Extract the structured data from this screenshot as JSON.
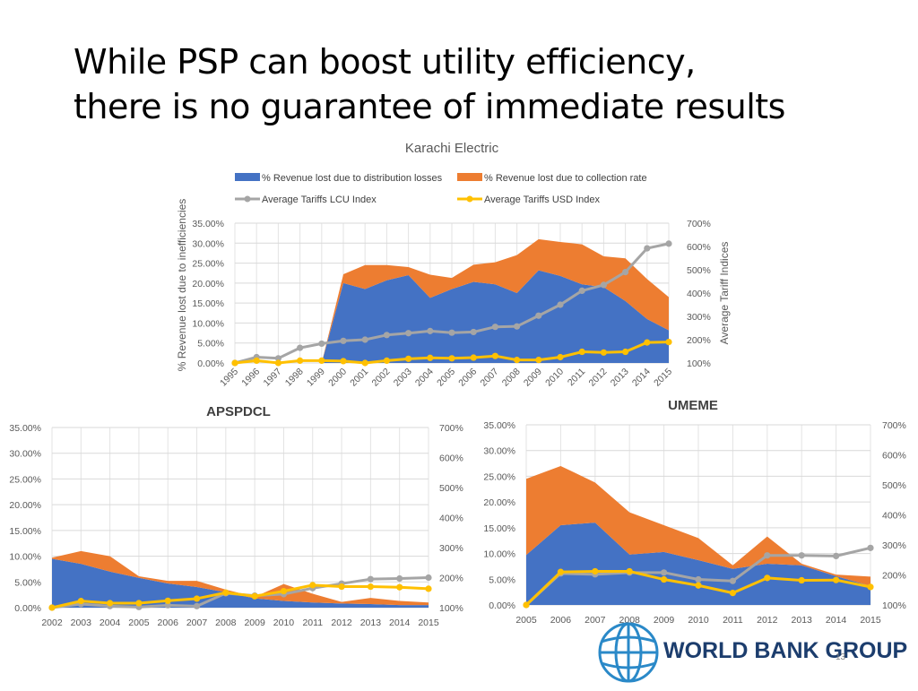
{
  "slide": {
    "title_line1": "While PSP can boost utility efficiency,",
    "title_line2": "there is no guarantee of immediate results",
    "logo_text": "WORLD BANK GROUP",
    "page_number": "13"
  },
  "colors": {
    "distribution": "#4472c4",
    "collection": "#ed7d31",
    "lcu": "#a5a5a5",
    "usd": "#ffc000"
  },
  "chart_data": [
    {
      "type": "area",
      "title": "Karachi Electric",
      "ylabel": "% Revenue lost due to inefficiencies",
      "y2label": "Average Tariff Indices",
      "legend": [
        "% Revenue lost due to distribution losses",
        "% Revenue lost due to collection rate",
        "Average Tariffs LCU Index",
        "Average Tariffs USD Index"
      ],
      "legend_position": "top",
      "ylim": [
        0,
        0.35
      ],
      "y_ticks": [
        "0.00%",
        "5.00%",
        "10.00%",
        "15.00%",
        "20.00%",
        "25.00%",
        "30.00%",
        "35.00%"
      ],
      "y2lim": [
        100,
        700
      ],
      "y2_ticks": [
        "100%",
        "200%",
        "300%",
        "400%",
        "500%",
        "600%",
        "700%"
      ],
      "x_rotated": true,
      "categories": [
        "1995",
        "1996",
        "1997",
        "1998",
        "1999",
        "2000",
        "2001",
        "2002",
        "2003",
        "2004",
        "2005",
        "2006",
        "2007",
        "2008",
        "2009",
        "2010",
        "2011",
        "2012",
        "2013",
        "2014",
        "2015"
      ],
      "series": [
        {
          "name": "% Revenue lost due to distribution losses",
          "kind": "area",
          "axis": "left",
          "values": [
            0,
            0,
            0,
            0,
            0,
            0.2,
            0.185,
            0.207,
            0.22,
            0.163,
            0.185,
            0.203,
            0.197,
            0.175,
            0.232,
            0.218,
            0.197,
            0.19,
            0.155,
            0.11,
            0.082
          ]
        },
        {
          "name": "% Revenue lost due to collection rate",
          "kind": "area",
          "axis": "left",
          "values": [
            0,
            0,
            0,
            0,
            0,
            0.022,
            0.06,
            0.038,
            0.02,
            0.058,
            0.028,
            0.043,
            0.055,
            0.095,
            0.078,
            0.085,
            0.1,
            0.077,
            0.107,
            0.1,
            0.083
          ]
        },
        {
          "name": "Average Tariffs LCU Index",
          "kind": "line",
          "axis": "right",
          "values": [
            100,
            125,
            120,
            165,
            183,
            195,
            200,
            220,
            228,
            237,
            230,
            233,
            255,
            257,
            303,
            350,
            410,
            435,
            490,
            592,
            612
          ]
        },
        {
          "name": "Average Tariffs USD Index",
          "kind": "line",
          "axis": "right",
          "values": [
            100,
            110,
            100,
            110,
            110,
            108,
            100,
            110,
            118,
            122,
            120,
            123,
            130,
            113,
            113,
            125,
            148,
            145,
            148,
            188,
            190
          ]
        }
      ]
    },
    {
      "type": "area",
      "title": "APSPDCL",
      "ylim": [
        0,
        0.35
      ],
      "y_ticks": [
        "0.00%",
        "5.00%",
        "10.00%",
        "15.00%",
        "20.00%",
        "25.00%",
        "30.00%",
        "35.00%"
      ],
      "y2lim": [
        100,
        700
      ],
      "y2_ticks": [
        "100%",
        "200%",
        "300%",
        "400%",
        "500%",
        "600%",
        "700%"
      ],
      "x_rotated": false,
      "categories": [
        "2002",
        "2003",
        "2004",
        "2005",
        "2006",
        "2007",
        "2008",
        "2009",
        "2010",
        "2011",
        "2012",
        "2013",
        "2014",
        "2015"
      ],
      "series": [
        {
          "name": "% Revenue lost due to distribution losses",
          "kind": "area",
          "axis": "left",
          "values": [
            0.095,
            0.085,
            0.07,
            0.058,
            0.047,
            0.04,
            0.03,
            0.018,
            0.013,
            0.01,
            0.008,
            0.007,
            0.005,
            0.005
          ]
        },
        {
          "name": "% Revenue lost due to collection rate",
          "kind": "area",
          "axis": "left",
          "values": [
            0.002,
            0.025,
            0.03,
            0.003,
            0.005,
            0.012,
            0.005,
            0.003,
            0.033,
            0.017,
            0.003,
            0.012,
            0.008,
            0.005
          ]
        },
        {
          "name": "Average Tariffs LCU Index",
          "kind": "line",
          "axis": "right",
          "values": [
            100,
            112,
            105,
            102,
            108,
            105,
            148,
            140,
            145,
            165,
            180,
            195,
            197,
            200
          ]
        },
        {
          "name": "Average Tariffs USD Index",
          "kind": "line",
          "axis": "right",
          "values": [
            100,
            122,
            115,
            115,
            123,
            130,
            150,
            138,
            155,
            175,
            170,
            170,
            168,
            163
          ]
        }
      ]
    },
    {
      "type": "area",
      "title": "UMEME",
      "ylim": [
        0,
        0.35
      ],
      "y_ticks": [
        "0.00%",
        "5.00%",
        "10.00%",
        "15.00%",
        "20.00%",
        "25.00%",
        "30.00%",
        "35.00%"
      ],
      "y2lim": [
        100,
        700
      ],
      "y2_ticks": [
        "100%",
        "200%",
        "300%",
        "400%",
        "500%",
        "600%",
        "700%"
      ],
      "x_rotated": false,
      "categories": [
        "2005",
        "2006",
        "2007",
        "2008",
        "2009",
        "2010",
        "2011",
        "2012",
        "2013",
        "2014",
        "2015"
      ],
      "series": [
        {
          "name": "% Revenue lost due to distribution losses",
          "kind": "area",
          "axis": "left",
          "values": [
            0.097,
            0.155,
            0.16,
            0.098,
            0.103,
            0.087,
            0.07,
            0.08,
            0.077,
            0.056,
            0.037
          ]
        },
        {
          "name": "% Revenue lost due to collection rate",
          "kind": "area",
          "axis": "left",
          "values": [
            0.148,
            0.115,
            0.078,
            0.082,
            0.052,
            0.043,
            0.007,
            0.053,
            0.003,
            0.003,
            0.018
          ]
        },
        {
          "name": "Average Tariffs LCU Index",
          "kind": "line",
          "axis": "right",
          "values": [
            100,
            205,
            202,
            208,
            208,
            185,
            180,
            265,
            265,
            263,
            290
          ]
        },
        {
          "name": "Average Tariffs USD Index",
          "kind": "line",
          "axis": "right",
          "values": [
            100,
            210,
            212,
            212,
            185,
            165,
            140,
            190,
            182,
            183,
            160
          ]
        }
      ]
    }
  ]
}
